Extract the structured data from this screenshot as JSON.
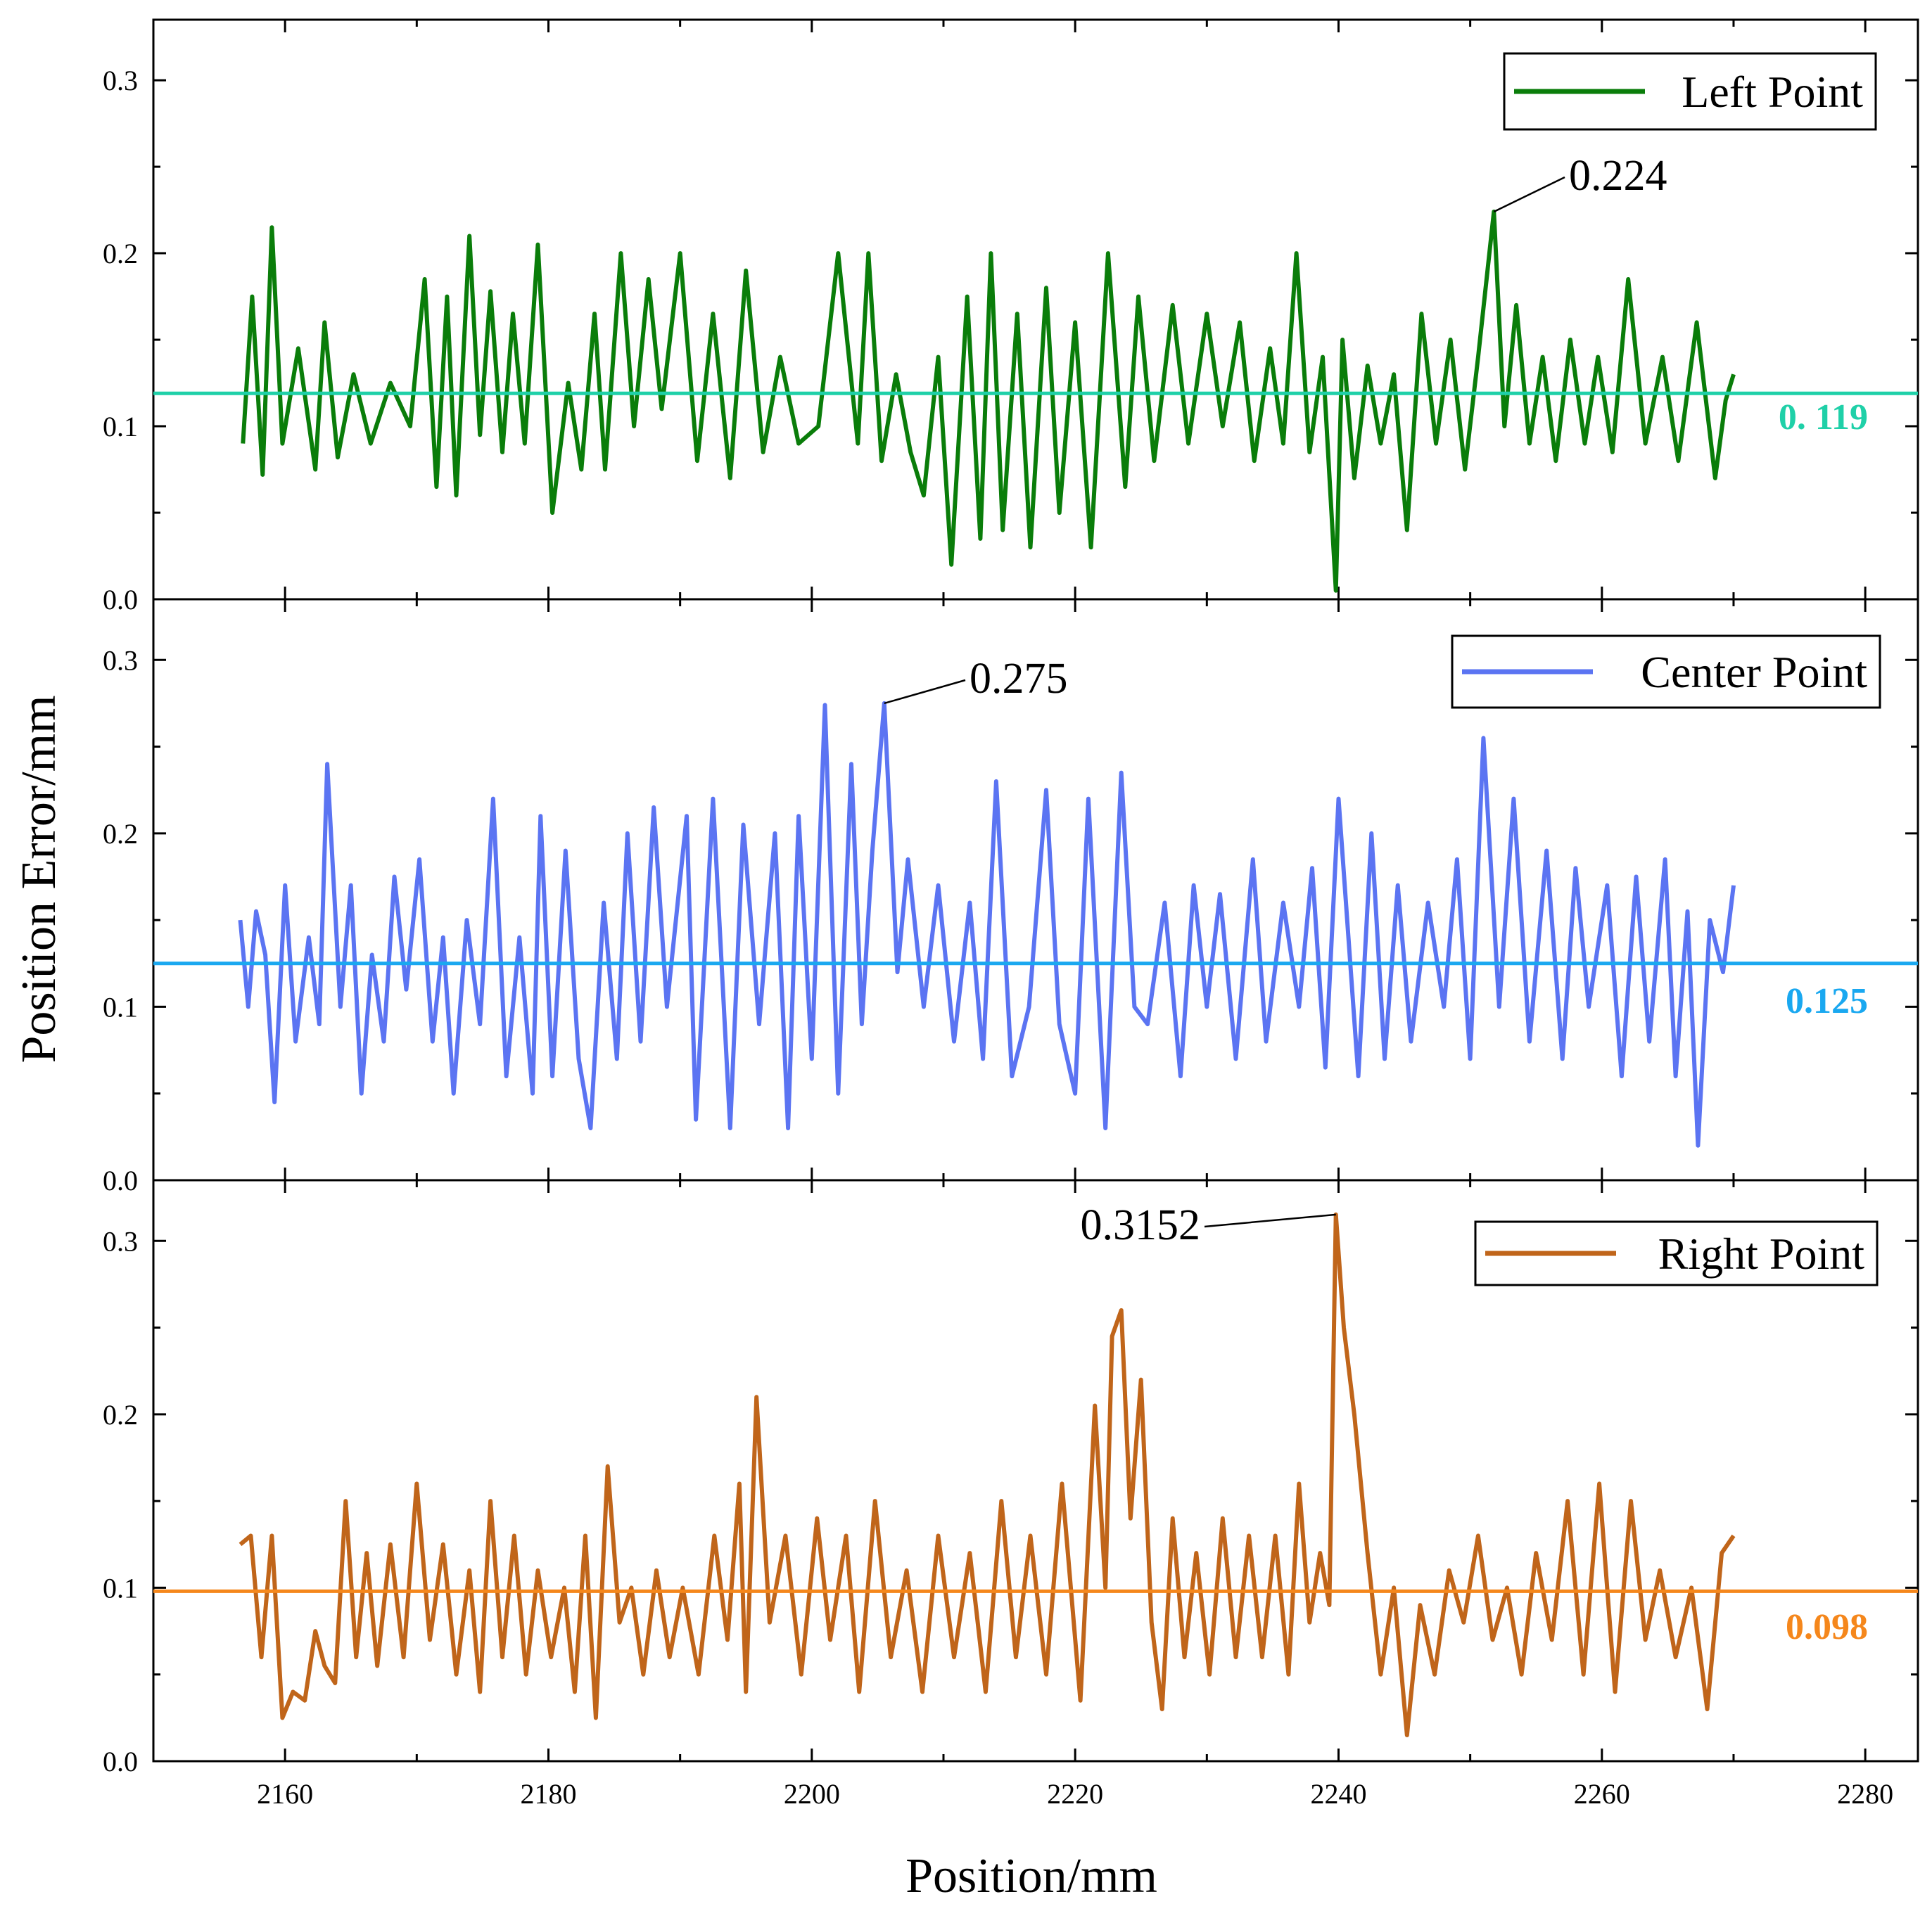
{
  "chart_data": {
    "type": "line",
    "xlabel": "Position/mm",
    "ylabel": "Position Error/mm",
    "xlim": [
      2150,
      2284
    ],
    "ylim": [
      0,
      0.335
    ],
    "x_ticks": [
      "2160",
      "2180",
      "2200",
      "2220",
      "2240",
      "2260",
      "2280"
    ],
    "x_tick_values": [
      2160,
      2180,
      2200,
      2220,
      2240,
      2260,
      2280
    ],
    "y_ticks": [
      "0.0",
      "0.1",
      "0.2",
      "0.3"
    ],
    "y_tick_values": [
      0.0,
      0.1,
      0.2,
      0.3
    ],
    "panels": [
      {
        "name": "Left Point",
        "color": "#0a7d0a",
        "mean": 0.119,
        "mean_label": "0. 119",
        "mean_color": "#1fd0a8",
        "peak_x": 2251.8,
        "peak_y": 0.224,
        "peak_label": "0.224",
        "x": [
          2156.8,
          2157.5,
          2158.3,
          2159,
          2159.8,
          2161,
          2162.3,
          2163,
          2164,
          2165.2,
          2166.5,
          2168,
          2169.5,
          2170.6,
          2171.5,
          2172.3,
          2173,
          2174,
          2174.8,
          2175.6,
          2176.5,
          2177.3,
          2178.2,
          2179.2,
          2180.3,
          2181.5,
          2182.5,
          2183.5,
          2184.3,
          2185.5,
          2186.5,
          2187.6,
          2188.6,
          2190,
          2191.3,
          2192.5,
          2193.8,
          2195,
          2196.3,
          2197.6,
          2199,
          2200.5,
          2202,
          2203.5,
          2204.3,
          2205.3,
          2206.4,
          2207.5,
          2208.5,
          2209.6,
          2210.6,
          2211.8,
          2212.8,
          2213.6,
          2214.5,
          2215.6,
          2216.6,
          2217.8,
          2218.8,
          2220,
          2221.2,
          2222.5,
          2223.8,
          2224.8,
          2226,
          2227.4,
          2228.6,
          2230,
          2231.2,
          2232.5,
          2233.6,
          2234.8,
          2235.8,
          2236.8,
          2237.8,
          2238.8,
          2239.8,
          2240.3,
          2241.2,
          2242.2,
          2243.2,
          2244.2,
          2245.2,
          2246.3,
          2247.4,
          2248.5,
          2249.6,
          2250.6,
          2251.8,
          2252.6,
          2253.5,
          2254.5,
          2255.5,
          2256.5,
          2257.6,
          2258.7,
          2259.7,
          2260.8,
          2262,
          2263.3,
          2264.6,
          2265.8,
          2267.2,
          2268.6,
          2269.4,
          2270
        ],
        "y": [
          0.09,
          0.175,
          0.072,
          0.215,
          0.09,
          0.145,
          0.075,
          0.16,
          0.082,
          0.13,
          0.09,
          0.125,
          0.1,
          0.185,
          0.065,
          0.175,
          0.06,
          0.21,
          0.095,
          0.178,
          0.085,
          0.165,
          0.09,
          0.205,
          0.05,
          0.125,
          0.075,
          0.165,
          0.075,
          0.2,
          0.1,
          0.185,
          0.11,
          0.2,
          0.08,
          0.165,
          0.07,
          0.19,
          0.085,
          0.14,
          0.09,
          0.1,
          0.2,
          0.09,
          0.2,
          0.08,
          0.13,
          0.085,
          0.06,
          0.14,
          0.02,
          0.175,
          0.035,
          0.2,
          0.04,
          0.165,
          0.03,
          0.18,
          0.05,
          0.16,
          0.03,
          0.2,
          0.065,
          0.175,
          0.08,
          0.17,
          0.09,
          0.165,
          0.1,
          0.16,
          0.08,
          0.145,
          0.09,
          0.2,
          0.085,
          0.14,
          0.005,
          0.15,
          0.07,
          0.135,
          0.09,
          0.13,
          0.04,
          0.165,
          0.09,
          0.15,
          0.075,
          0.14,
          0.224,
          0.1,
          0.17,
          0.09,
          0.14,
          0.08,
          0.15,
          0.09,
          0.14,
          0.085,
          0.185,
          0.09,
          0.14,
          0.08,
          0.16,
          0.07,
          0.115,
          0.13
        ]
      },
      {
        "name": "Center Point",
        "color": "#5b74f2",
        "mean": 0.125,
        "mean_label": "0.125",
        "mean_color": "#1aa8f0",
        "peak_x": 2205.5,
        "peak_y": 0.275,
        "peak_label": "0.275",
        "x": [
          2156.6,
          2157.2,
          2157.8,
          2158.5,
          2159.2,
          2160,
          2160.8,
          2161.8,
          2162.6,
          2163.2,
          2164.2,
          2165,
          2165.8,
          2166.6,
          2167.5,
          2168.3,
          2169.2,
          2170.2,
          2171.2,
          2172,
          2172.8,
          2173.8,
          2174.8,
          2175.8,
          2176.8,
          2177.8,
          2178.8,
          2179.4,
          2180.3,
          2181.3,
          2182.3,
          2183.2,
          2184.2,
          2185.2,
          2186,
          2187,
          2188,
          2189,
          2190.5,
          2191.2,
          2192.5,
          2193.8,
          2194.8,
          2196,
          2197.2,
          2198.2,
          2199,
          2200,
          2201,
          2202,
          2203,
          2203.8,
          2204.6,
          2205.5,
          2206.5,
          2207.3,
          2208.5,
          2209.6,
          2210.8,
          2212,
          2213,
          2214,
          2215.2,
          2216.5,
          2217.8,
          2218.8,
          2220,
          2221,
          2222.3,
          2223.5,
          2224.5,
          2225.5,
          2226.8,
          2228,
          2229,
          2230,
          2231,
          2232.2,
          2233.5,
          2234.5,
          2235.8,
          2237,
          2238,
          2239,
          2240,
          2241.5,
          2242.5,
          2243.5,
          2244.5,
          2245.5,
          2246.8,
          2248,
          2249,
          2250,
          2251,
          2252.2,
          2253.3,
          2254.5,
          2255.8,
          2257,
          2258,
          2259,
          2260.4,
          2261.5,
          2262.6,
          2263.6,
          2264.8,
          2265.6,
          2266.5,
          2267.3,
          2268.2,
          2269.2,
          2270
        ],
        "y": [
          0.15,
          0.1,
          0.155,
          0.13,
          0.045,
          0.17,
          0.08,
          0.14,
          0.09,
          0.24,
          0.1,
          0.17,
          0.05,
          0.13,
          0.08,
          0.175,
          0.11,
          0.185,
          0.08,
          0.14,
          0.05,
          0.15,
          0.09,
          0.22,
          0.06,
          0.14,
          0.05,
          0.21,
          0.06,
          0.19,
          0.07,
          0.03,
          0.16,
          0.07,
          0.2,
          0.08,
          0.215,
          0.1,
          0.21,
          0.035,
          0.22,
          0.03,
          0.205,
          0.09,
          0.2,
          0.03,
          0.21,
          0.07,
          0.274,
          0.05,
          0.24,
          0.09,
          0.19,
          0.275,
          0.12,
          0.185,
          0.1,
          0.17,
          0.08,
          0.16,
          0.07,
          0.23,
          0.06,
          0.1,
          0.225,
          0.09,
          0.05,
          0.22,
          0.03,
          0.235,
          0.1,
          0.09,
          0.16,
          0.06,
          0.17,
          0.1,
          0.165,
          0.07,
          0.185,
          0.08,
          0.16,
          0.1,
          0.18,
          0.065,
          0.22,
          0.06,
          0.2,
          0.07,
          0.17,
          0.08,
          0.16,
          0.1,
          0.185,
          0.07,
          0.255,
          0.1,
          0.22,
          0.08,
          0.19,
          0.07,
          0.18,
          0.1,
          0.17,
          0.06,
          0.175,
          0.08,
          0.185,
          0.06,
          0.155,
          0.02,
          0.15,
          0.12,
          0.17
        ]
      },
      {
        "name": "Right Point",
        "color": "#c0651a",
        "mean": 0.098,
        "mean_label": "0.098",
        "mean_color": "#f5871c",
        "peak_x": 2239.8,
        "peak_y": 0.3152,
        "peak_label": "0.3152",
        "x": [
          2156.6,
          2157.4,
          2158.2,
          2159,
          2159.8,
          2160.6,
          2161.5,
          2162.3,
          2163,
          2163.8,
          2164.6,
          2165.4,
          2166.2,
          2167,
          2168,
          2169,
          2170,
          2171,
          2172,
          2173,
          2174,
          2174.8,
          2175.6,
          2176.5,
          2177.4,
          2178.3,
          2179.2,
          2180.2,
          2181.2,
          2182,
          2182.8,
          2183.6,
          2184.5,
          2185.4,
          2186.3,
          2187.2,
          2188.2,
          2189.2,
          2190.2,
          2191.4,
          2192.6,
          2193.6,
          2194.5,
          2195,
          2195.8,
          2196.8,
          2198,
          2199.2,
          2200.4,
          2201.4,
          2202.6,
          2203.6,
          2204.8,
          2206,
          2207.2,
          2208.4,
          2209.6,
          2210.8,
          2212,
          2213.2,
          2214.4,
          2215.5,
          2216.6,
          2217.8,
          2219,
          2220.4,
          2221.5,
          2222.3,
          2222.8,
          2223.5,
          2224.2,
          2225,
          2225.8,
          2226.6,
          2227.4,
          2228.3,
          2229.2,
          2230.2,
          2231.2,
          2232.2,
          2233.2,
          2234.2,
          2235.2,
          2236.2,
          2237,
          2237.8,
          2238.6,
          2239.3,
          2239.8,
          2240.4,
          2241.2,
          2242.2,
          2243.2,
          2244.2,
          2245.2,
          2246.2,
          2247.3,
          2248.4,
          2249.5,
          2250.6,
          2251.7,
          2252.8,
          2253.9,
          2255,
          2256.2,
          2257.4,
          2258.6,
          2259.8,
          2261,
          2262.2,
          2263.3,
          2264.4,
          2265.6,
          2266.8,
          2268,
          2269.1,
          2270
        ],
        "y": [
          0.125,
          0.13,
          0.06,
          0.13,
          0.025,
          0.04,
          0.035,
          0.075,
          0.055,
          0.045,
          0.15,
          0.06,
          0.12,
          0.055,
          0.125,
          0.06,
          0.16,
          0.07,
          0.125,
          0.05,
          0.11,
          0.04,
          0.15,
          0.06,
          0.13,
          0.05,
          0.11,
          0.06,
          0.1,
          0.04,
          0.13,
          0.025,
          0.17,
          0.08,
          0.1,
          0.05,
          0.11,
          0.06,
          0.1,
          0.05,
          0.13,
          0.07,
          0.16,
          0.04,
          0.21,
          0.08,
          0.13,
          0.05,
          0.14,
          0.07,
          0.13,
          0.04,
          0.15,
          0.06,
          0.11,
          0.04,
          0.13,
          0.06,
          0.12,
          0.04,
          0.15,
          0.06,
          0.13,
          0.05,
          0.16,
          0.035,
          0.205,
          0.1,
          0.245,
          0.26,
          0.14,
          0.22,
          0.08,
          0.03,
          0.14,
          0.06,
          0.12,
          0.05,
          0.14,
          0.06,
          0.13,
          0.06,
          0.13,
          0.05,
          0.16,
          0.08,
          0.12,
          0.09,
          0.3152,
          0.25,
          0.2,
          0.12,
          0.05,
          0.1,
          0.015,
          0.09,
          0.05,
          0.11,
          0.08,
          0.13,
          0.07,
          0.1,
          0.05,
          0.12,
          0.07,
          0.15,
          0.05,
          0.16,
          0.04,
          0.15,
          0.07,
          0.11,
          0.06,
          0.1,
          0.03,
          0.12,
          0.13
        ]
      }
    ]
  }
}
